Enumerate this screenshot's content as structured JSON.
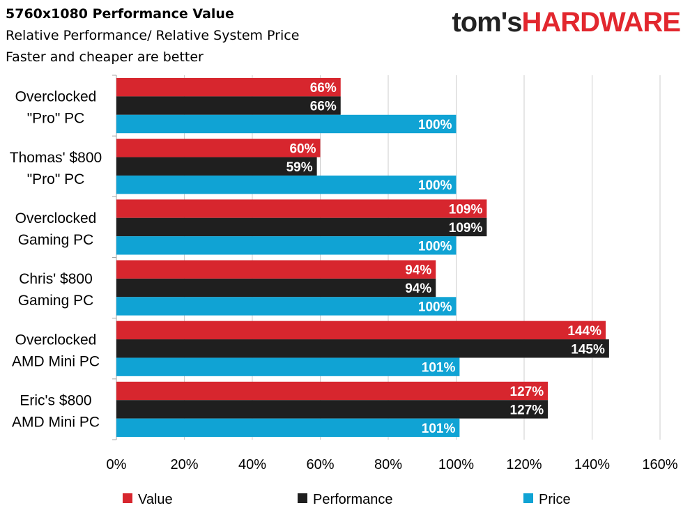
{
  "title_lines": [
    "5760x1080 Performance Value",
    "Relative Performance/ Relative System Price",
    "Faster and cheaper are better"
  ],
  "logo": {
    "part1": "tom's",
    "part2": "HARDWARE"
  },
  "chart_data": {
    "type": "bar",
    "orientation": "horizontal",
    "categories": [
      [
        "Overclocked",
        "\"Pro\" PC"
      ],
      [
        "Thomas' $800",
        "\"Pro\" PC"
      ],
      [
        "Overclocked",
        "Gaming PC"
      ],
      [
        "Chris' $800",
        "Gaming PC"
      ],
      [
        "Overclocked",
        "AMD Mini PC"
      ],
      [
        "Eric's $800",
        "AMD Mini PC"
      ]
    ],
    "series": [
      {
        "name": "Value",
        "color": "#d7262e",
        "values": [
          66,
          60,
          109,
          94,
          144,
          127
        ],
        "labels": [
          "66%",
          "60%",
          "109%",
          "94%",
          "144%",
          "127%"
        ]
      },
      {
        "name": "Performance",
        "color": "#1f1f1f",
        "values": [
          66,
          59,
          109,
          94,
          145,
          127
        ],
        "labels": [
          "66%",
          "59%",
          "109%",
          "94%",
          "145%",
          "127%"
        ]
      },
      {
        "name": "Price",
        "color": "#10a3d4",
        "values": [
          100,
          100,
          100,
          100,
          101,
          101
        ],
        "labels": [
          "100%",
          "100%",
          "100%",
          "100%",
          "101%",
          "101%"
        ]
      }
    ],
    "xlim": [
      0,
      160
    ],
    "xticks": [
      0,
      20,
      40,
      60,
      80,
      100,
      120,
      140,
      160
    ],
    "xtick_labels": [
      "0%",
      "20%",
      "40%",
      "60%",
      "80%",
      "100%",
      "120%",
      "140%",
      "160%"
    ],
    "grid": "vertical",
    "legend": "bottom"
  }
}
